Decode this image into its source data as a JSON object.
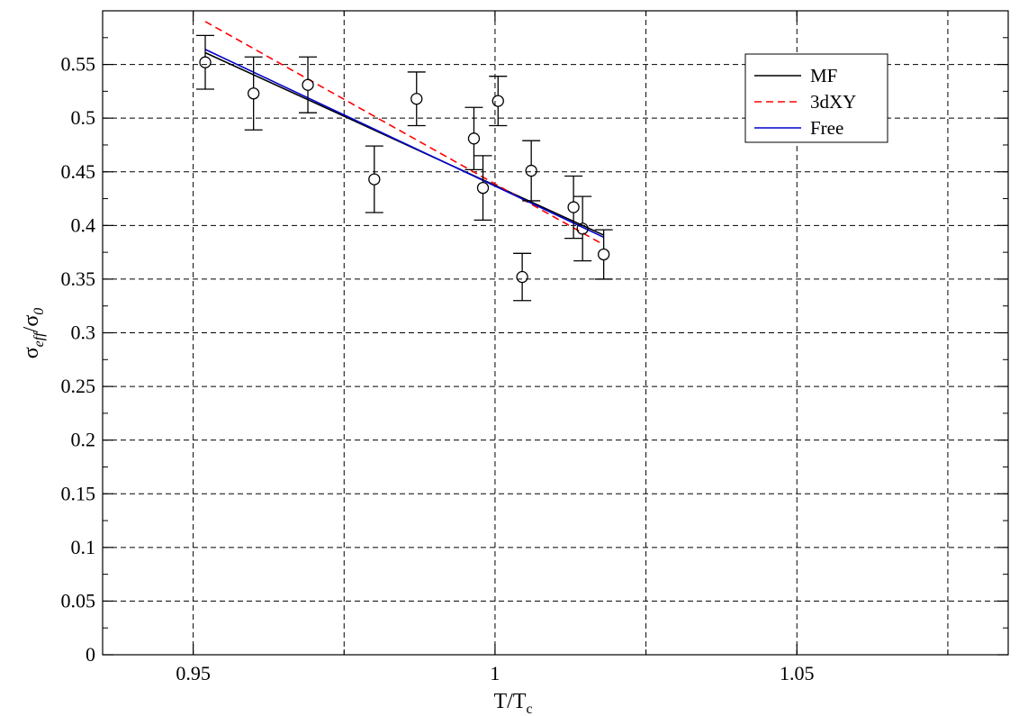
{
  "chart_data": {
    "type": "scatter",
    "xlabel": "T/T_c",
    "ylabel": "σ_eff/σ_0",
    "xlim": [
      0.935,
      1.085
    ],
    "ylim": [
      0,
      0.6
    ],
    "xticks": [
      0.95,
      1,
      1.05
    ],
    "xtick_labels": [
      "0.95",
      "1",
      "1.05"
    ],
    "yticks": [
      0,
      0.05,
      0.1,
      0.15,
      0.2,
      0.25,
      0.3,
      0.35,
      0.4,
      0.45,
      0.5,
      0.55
    ],
    "ytick_labels": [
      "0",
      "0.05",
      "0.1",
      "0.15",
      "0.2",
      "0.25",
      "0.3",
      "0.35",
      "0.4",
      "0.45",
      "0.5",
      "0.55"
    ],
    "grid": true,
    "legend_position": "top-right",
    "points": [
      {
        "x": 0.952,
        "y": 0.552,
        "err": 0.025
      },
      {
        "x": 0.96,
        "y": 0.523,
        "err": 0.034
      },
      {
        "x": 0.969,
        "y": 0.531,
        "err": 0.026
      },
      {
        "x": 0.98,
        "y": 0.443,
        "err": 0.031
      },
      {
        "x": 0.987,
        "y": 0.518,
        "err": 0.025
      },
      {
        "x": 0.9965,
        "y": 0.481,
        "err": 0.029
      },
      {
        "x": 0.998,
        "y": 0.435,
        "err": 0.03
      },
      {
        "x": 1.0005,
        "y": 0.516,
        "err": 0.023
      },
      {
        "x": 1.0045,
        "y": 0.352,
        "err": 0.022
      },
      {
        "x": 1.006,
        "y": 0.451,
        "err": 0.028
      },
      {
        "x": 1.013,
        "y": 0.417,
        "err": 0.029
      },
      {
        "x": 1.0145,
        "y": 0.397,
        "err": 0.03
      },
      {
        "x": 1.018,
        "y": 0.373,
        "err": 0.023
      }
    ],
    "series": [
      {
        "name": "MF",
        "style": "solid",
        "color": "#000000",
        "x": [
          0.952,
          1.018
        ],
        "y": [
          0.561,
          0.391
        ]
      },
      {
        "name": "3dXY",
        "style": "dashed",
        "color": "#ff0000",
        "x": [
          0.952,
          1.018
        ],
        "y": [
          0.59,
          0.382
        ]
      },
      {
        "name": "Free",
        "style": "solid",
        "color": "#0000cc",
        "x": [
          0.952,
          1.018
        ],
        "y": [
          0.564,
          0.389
        ]
      }
    ]
  }
}
